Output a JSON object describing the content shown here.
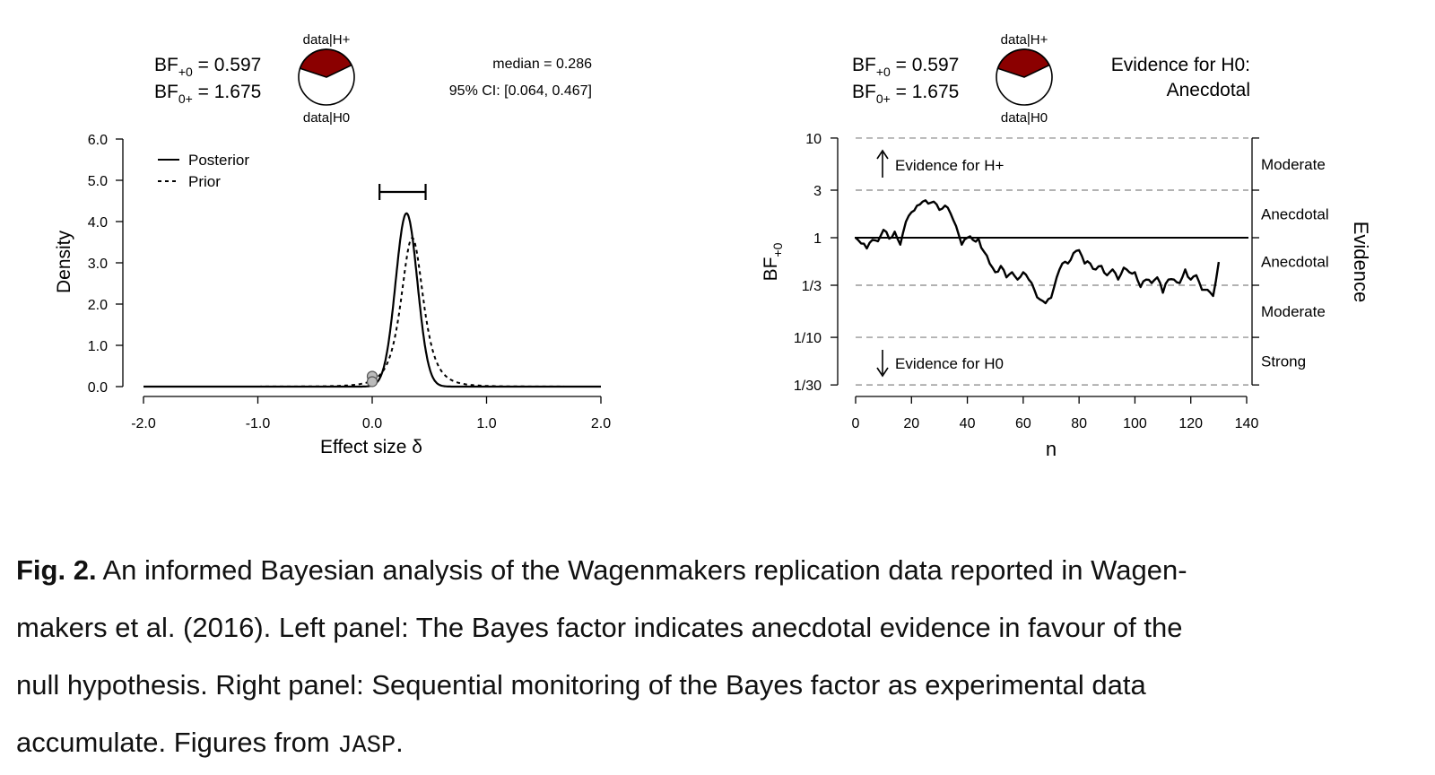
{
  "chart_data": [
    {
      "type": "line",
      "panel": "left",
      "xlabel": "Effect size δ",
      "ylabel": "Density",
      "xlim": [
        -2.0,
        2.0
      ],
      "ylim": [
        0.0,
        6.0
      ],
      "xticks": [
        "-2.0",
        "-1.0",
        "0.0",
        "1.0",
        "2.0"
      ],
      "yticks": [
        "0.0",
        "1.0",
        "2.0",
        "3.0",
        "4.0",
        "5.0",
        "6.0"
      ],
      "legend": [
        "Posterior",
        "Prior"
      ],
      "legend_position": "top-left",
      "bf_plus0": "BF+0 = 0.597",
      "bf_0plus": "BF0+ = 1.675",
      "pie_top_label": "data|H+",
      "pie_bottom_label": "data|H0",
      "median_label": "median = 0.286",
      "ci_label": "95% CI: [0.064, 0.467]",
      "ci": [
        0.064,
        0.467
      ],
      "series": [
        {
          "name": "Posterior",
          "style": "solid",
          "distribution": "normal",
          "mean": 0.3,
          "sd": 0.095,
          "x": [
            -2.0,
            -1.0,
            0.0,
            0.1,
            0.2,
            0.3,
            0.4,
            0.5,
            0.6,
            2.0
          ],
          "values": [
            0.0,
            0.0,
            0.25,
            0.75,
            2.36,
            4.2,
            2.36,
            0.75,
            0.12,
            0.0
          ]
        },
        {
          "name": "Prior",
          "style": "dashed",
          "distribution": "t",
          "location": 0.35,
          "scale": 0.102,
          "df": 3,
          "x": [
            -2.0,
            -1.0,
            0.0,
            0.2,
            0.3,
            0.35,
            0.5,
            0.7,
            1.0,
            2.0
          ],
          "values": [
            0.0,
            0.0,
            0.12,
            1.1,
            3.0,
            3.6,
            1.1,
            0.15,
            0.02,
            0.0
          ]
        }
      ],
      "points": [
        {
          "x": 0.0,
          "y": 0.25
        },
        {
          "x": 0.0,
          "y": 0.12
        }
      ]
    },
    {
      "type": "line",
      "panel": "right",
      "xlabel": "n",
      "ylabel": "BF+0",
      "xlim": [
        0,
        140
      ],
      "scale_y": "log",
      "yticks": [
        "1/30",
        "1/10",
        "1/3",
        "1",
        "3",
        "10"
      ],
      "ytick_values": [
        0.0333,
        0.1,
        0.3333,
        1,
        3,
        10
      ],
      "xticks": [
        "0",
        "20",
        "40",
        "60",
        "80",
        "100",
        "120",
        "140"
      ],
      "right_axis_label": "Evidence",
      "evidence_bands": [
        "Moderate",
        "Anecdotal",
        "Anecdotal",
        "Moderate",
        "Strong"
      ],
      "arrow_up_text": "Evidence for H+",
      "arrow_down_text": "Evidence for H0",
      "bf_plus0": "BF+0 = 0.597",
      "bf_0plus": "BF0+ = 1.675",
      "pie_top_label": "data|H+",
      "pie_bottom_label": "data|H0",
      "evidence_text_1": "Evidence for H0:",
      "evidence_text_2": "Anecdotal",
      "series": [
        {
          "name": "BF+0",
          "x": [
            0,
            4,
            6,
            8,
            10,
            12,
            14,
            16,
            18,
            20,
            22,
            24,
            26,
            28,
            30,
            32,
            34,
            36,
            38,
            40,
            42,
            44,
            46,
            48,
            50,
            52,
            54,
            56,
            58,
            60,
            62,
            64,
            66,
            68,
            70,
            72,
            74,
            76,
            78,
            80,
            82,
            84,
            86,
            88,
            90,
            92,
            94,
            96,
            98,
            100,
            102,
            104,
            106,
            108,
            110,
            112,
            114,
            116,
            118,
            120,
            122,
            124,
            126,
            128,
            130
          ],
          "values": [
            1.0,
            0.78,
            0.95,
            0.92,
            1.2,
            0.98,
            1.15,
            0.85,
            1.45,
            1.8,
            2.1,
            2.3,
            2.2,
            2.3,
            1.9,
            2.1,
            1.75,
            1.3,
            0.85,
            1.0,
            0.95,
            0.98,
            0.72,
            0.55,
            0.45,
            0.52,
            0.4,
            0.45,
            0.38,
            0.45,
            0.38,
            0.3,
            0.24,
            0.22,
            0.25,
            0.4,
            0.55,
            0.55,
            0.7,
            0.75,
            0.55,
            0.55,
            0.48,
            0.52,
            0.42,
            0.48,
            0.38,
            0.5,
            0.45,
            0.45,
            0.32,
            0.38,
            0.35,
            0.4,
            0.28,
            0.38,
            0.38,
            0.35,
            0.48,
            0.38,
            0.42,
            0.3,
            0.3,
            0.26,
            0.57
          ]
        }
      ]
    }
  ],
  "caption": {
    "label": "Fig. 2.",
    "line1": "An informed Bayesian analysis of the Wagenmakers replication data reported in Wagen-",
    "line2": "makers et al. (2016). Left panel: The Bayes factor indicates anecdotal evidence in favour of the",
    "line3": "null hypothesis.  Right panel: Sequential monitoring of the Bayes factor as experimental data",
    "line4_a": "accumulate. Figures from ",
    "line4_mono": "JASP",
    "line4_b": "."
  },
  "colors": {
    "pie_fill": "#8b0000",
    "ink": "#000000",
    "grid_dash": "#999999",
    "point": "#bbbbbb"
  }
}
